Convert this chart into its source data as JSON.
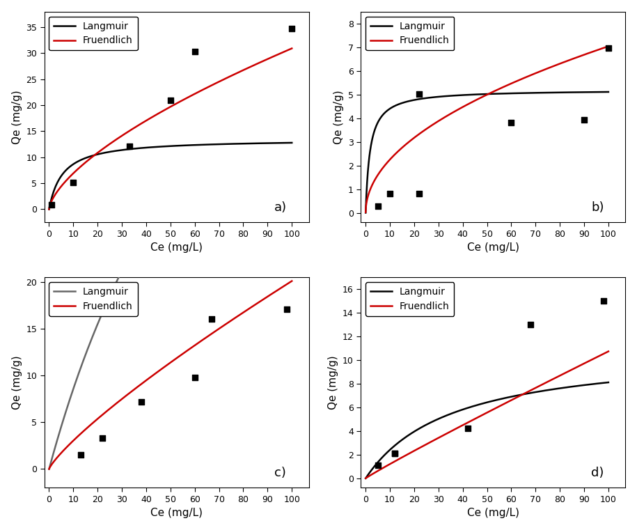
{
  "subplots": [
    {
      "label": "a)",
      "scatter_x": [
        1,
        10,
        33,
        50,
        60,
        100
      ],
      "scatter_y": [
        0.9,
        5.1,
        12.1,
        21.0,
        30.3,
        34.8
      ],
      "langmuir_qmax": 13.5,
      "langmuir_KL": 0.18,
      "freundlich_KF": 1.55,
      "freundlich_n": 0.65,
      "ylim": [
        -2.5,
        38
      ],
      "yticks": [
        0,
        5,
        10,
        15,
        20,
        25,
        30,
        35
      ],
      "xlim": [
        -2,
        107
      ],
      "xticks": [
        0,
        10,
        20,
        30,
        40,
        50,
        60,
        70,
        80,
        90,
        100
      ],
      "langmuir_color": "#000000",
      "freundlich_color": "#cc0000"
    },
    {
      "label": "b)",
      "scatter_x": [
        5,
        10,
        22,
        22,
        60,
        90,
        100
      ],
      "scatter_y": [
        0.27,
        0.82,
        5.02,
        0.82,
        3.82,
        3.92,
        6.95
      ],
      "langmuir_qmax": 5.2,
      "langmuir_KL": 0.55,
      "freundlich_KF": 0.72,
      "freundlich_n": 0.495,
      "ylim": [
        -0.4,
        8.5
      ],
      "yticks": [
        0,
        1,
        2,
        3,
        4,
        5,
        6,
        7,
        8
      ],
      "xlim": [
        -2,
        107
      ],
      "xticks": [
        0,
        10,
        20,
        30,
        40,
        50,
        60,
        70,
        80,
        90,
        100
      ],
      "langmuir_color": "#000000",
      "freundlich_color": "#cc0000"
    },
    {
      "label": "c)",
      "scatter_x": [
        13,
        22,
        38,
        60,
        67,
        98
      ],
      "scatter_y": [
        1.5,
        3.3,
        7.2,
        9.8,
        16.0,
        17.1
      ],
      "langmuir_qmax": 80.0,
      "langmuir_KL": 0.012,
      "freundlich_KF": 0.46,
      "freundlich_n": 0.82,
      "ylim": [
        -2.0,
        20.5
      ],
      "yticks": [
        0,
        5,
        10,
        15,
        20
      ],
      "xlim": [
        -2,
        107
      ],
      "xticks": [
        0,
        10,
        20,
        30,
        40,
        50,
        60,
        70,
        80,
        90,
        100
      ],
      "langmuir_color": "#666666",
      "freundlich_color": "#cc0000"
    },
    {
      "label": "d)",
      "scatter_x": [
        5,
        12,
        12,
        42,
        68,
        98
      ],
      "scatter_y": [
        1.1,
        2.1,
        2.1,
        4.2,
        13.0,
        15.0
      ],
      "langmuir_qmax": 11.0,
      "langmuir_KL": 0.028,
      "freundlich_KF": 0.135,
      "freundlich_n": 0.95,
      "ylim": [
        -0.8,
        17.0
      ],
      "yticks": [
        0,
        2,
        4,
        6,
        8,
        10,
        12,
        14,
        16
      ],
      "xlim": [
        -2,
        107
      ],
      "xticks": [
        0,
        10,
        20,
        30,
        40,
        50,
        60,
        70,
        80,
        90,
        100
      ],
      "langmuir_color": "#000000",
      "freundlich_color": "#cc0000"
    }
  ],
  "xlabel": "Ce (mg/L)",
  "ylabel": "Qe (mg/g)",
  "langmuir_label": "Langmuir",
  "freundlich_label": "Fruendlich",
  "scatter_marker": "s",
  "scatter_color": "#000000",
  "scatter_size": 35,
  "line_width": 1.8,
  "font_size": 10,
  "label_font_size": 11,
  "tick_font_size": 9
}
